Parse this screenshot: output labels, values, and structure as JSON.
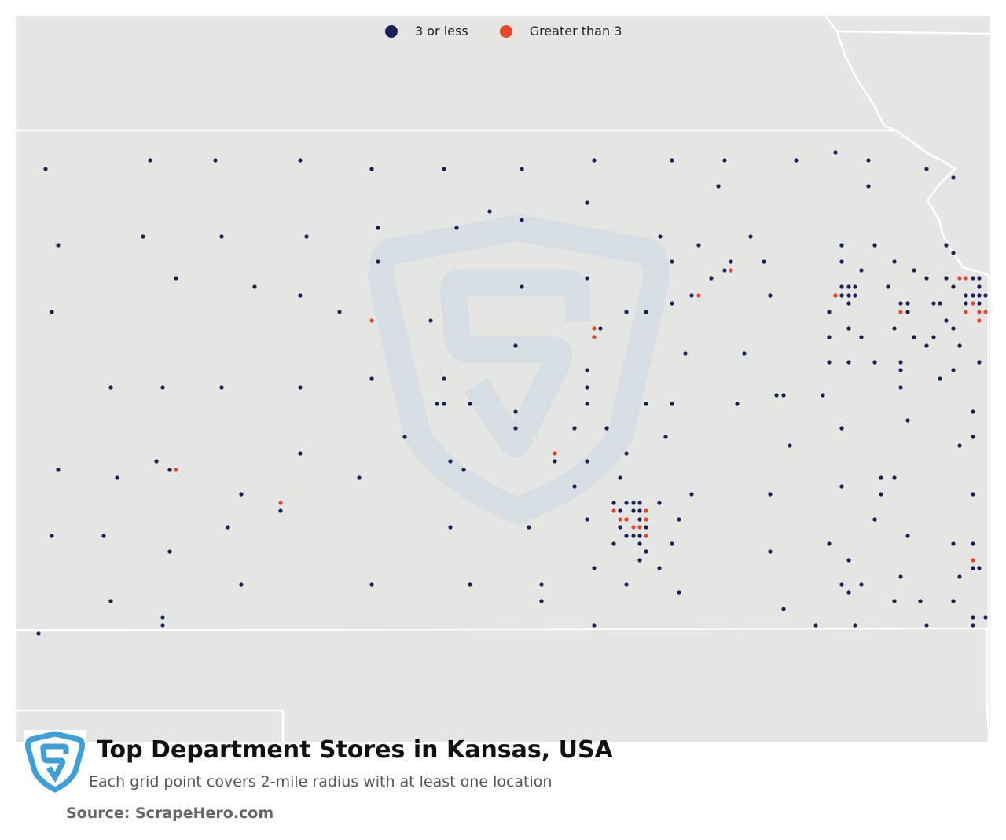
{
  "legend": [
    {
      "label": "3 or less",
      "color": "#1a2157"
    },
    {
      "label": "Greater than 3",
      "color": "#e8472a"
    }
  ],
  "title": "Top Department Stores in Kansas, USA",
  "subtitle": "Each grid point covers 2-mile radius with at least one location",
  "source": "Source: ScrapeHero.com",
  "colors": {
    "background": "#e5e5e3",
    "border": "#ffffff",
    "watermark": "#d7dfe4",
    "logo": "#3ea0d8"
  }
}
